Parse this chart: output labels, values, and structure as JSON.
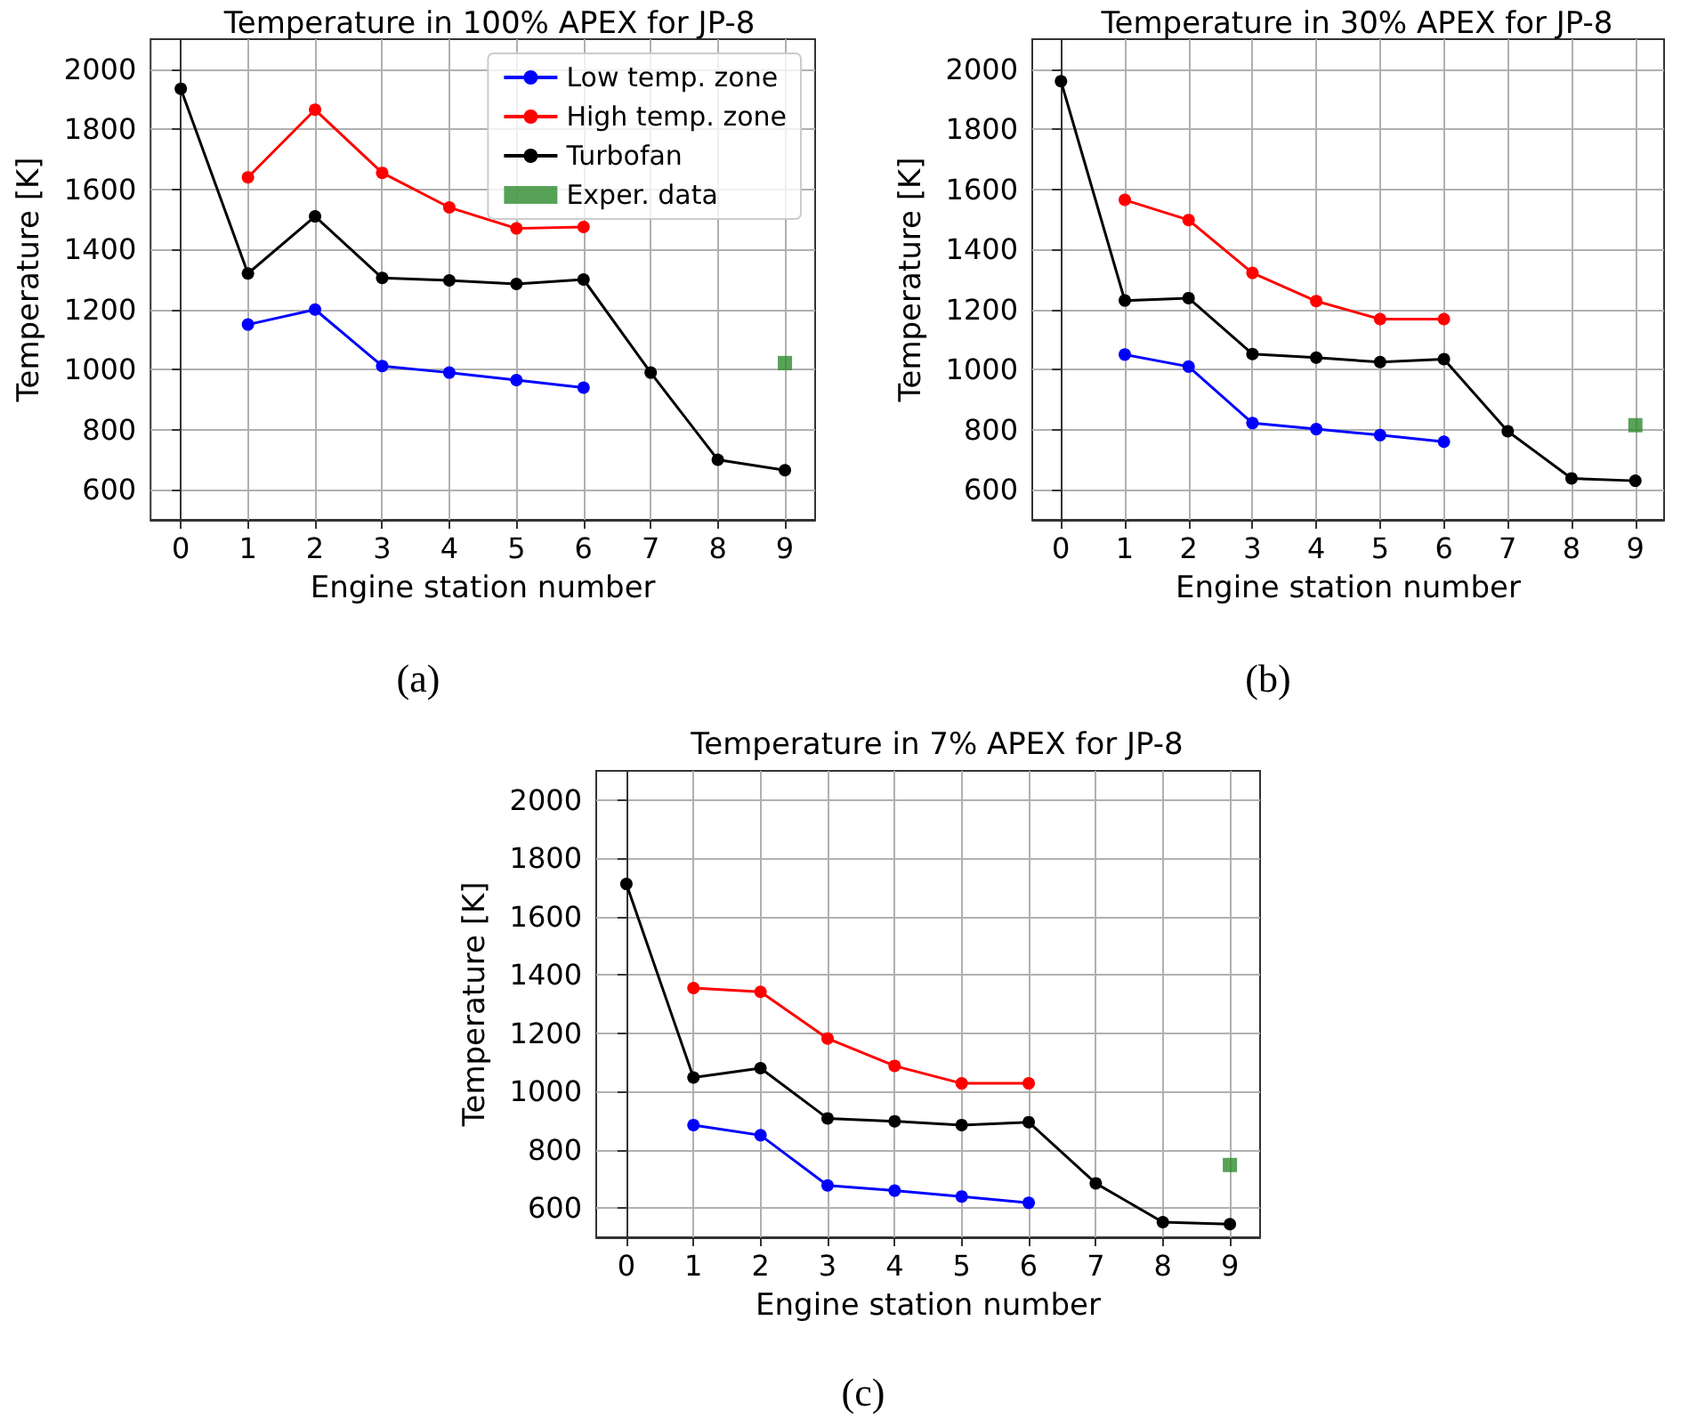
{
  "chart_data": [
    {
      "type": "line",
      "title": "Temperature in 100% APEX for JP-8",
      "xlabel": "Engine station number",
      "ylabel": "Temperature [K]",
      "annotations": [
        "(a)"
      ],
      "x": [
        0,
        1,
        2,
        3,
        4,
        5,
        6,
        7,
        8,
        9
      ],
      "xlim": [
        -0.45,
        9.45
      ],
      "xticks": [
        0,
        1,
        2,
        3,
        4,
        5,
        6,
        7,
        8,
        9
      ],
      "ylim": [
        500,
        2100
      ],
      "yticks": [
        600,
        800,
        1000,
        1200,
        1400,
        1600,
        1800,
        2000
      ],
      "grid": true,
      "legend": "top right",
      "marker": "circle",
      "series": [
        {
          "name": "Low temp. zone",
          "color": "#0000ff",
          "values": [
            null,
            1150,
            1200,
            1012,
            990,
            965,
            940,
            null,
            null,
            null
          ]
        },
        {
          "name": "High temp. zone",
          "color": "#ff0000",
          "values": [
            null,
            1640,
            1865,
            1655,
            1540,
            1470,
            1475,
            null,
            null,
            null
          ]
        },
        {
          "name": "Turbofan",
          "color": "#000000",
          "values": [
            1935,
            1320,
            1510,
            1305,
            1297,
            1285,
            1300,
            990,
            700,
            665
          ]
        },
        {
          "name": "Exper. data",
          "type": "scatter",
          "marker": "square",
          "color": "#2e8b2e",
          "values": [
            null,
            null,
            null,
            null,
            null,
            null,
            null,
            null,
            null,
            1022
          ]
        }
      ]
    },
    {
      "type": "line",
      "title": "Temperature in 30% APEX for JP-8",
      "xlabel": "Engine station number",
      "ylabel": "Temperature [K]",
      "annotations": [
        "(b)"
      ],
      "x": [
        0,
        1,
        2,
        3,
        4,
        5,
        6,
        7,
        8,
        9
      ],
      "xlim": [
        -0.45,
        9.45
      ],
      "xticks": [
        0,
        1,
        2,
        3,
        4,
        5,
        6,
        7,
        8,
        9
      ],
      "ylim": [
        500,
        2100
      ],
      "yticks": [
        600,
        800,
        1000,
        1200,
        1400,
        1600,
        1800,
        2000
      ],
      "grid": true,
      "marker": "circle",
      "series": [
        {
          "color": "#0000ff",
          "values": [
            null,
            1050,
            1010,
            822,
            802,
            782,
            760,
            null,
            null,
            null
          ]
        },
        {
          "color": "#ff0000",
          "values": [
            null,
            1565,
            1498,
            1322,
            1228,
            1168,
            1168,
            null,
            null,
            null
          ]
        },
        {
          "color": "#000000",
          "values": [
            1960,
            1230,
            1238,
            1052,
            1040,
            1025,
            1035,
            795,
            638,
            630
          ]
        },
        {
          "type": "scatter",
          "marker": "square",
          "color": "#2e8b2e",
          "values": [
            null,
            null,
            null,
            null,
            null,
            null,
            null,
            null,
            null,
            815
          ]
        }
      ]
    },
    {
      "type": "line",
      "title": "Temperature in 7% APEX for JP-8",
      "xlabel": "Engine station number",
      "ylabel": "Temperature [K]",
      "annotations": [
        "(c)"
      ],
      "x": [
        0,
        1,
        2,
        3,
        4,
        5,
        6,
        7,
        8,
        9
      ],
      "xlim": [
        -0.45,
        9.45
      ],
      "xticks": [
        0,
        1,
        2,
        3,
        4,
        5,
        6,
        7,
        8,
        9
      ],
      "ylim": [
        500,
        2100
      ],
      "yticks": [
        600,
        800,
        1000,
        1200,
        1400,
        1600,
        1800,
        2000
      ],
      "grid": true,
      "marker": "circle",
      "series": [
        {
          "color": "#0000ff",
          "values": [
            null,
            885,
            850,
            678,
            660,
            640,
            618,
            null,
            null,
            null
          ]
        },
        {
          "color": "#ff0000",
          "values": [
            null,
            1355,
            1342,
            1182,
            1088,
            1028,
            1028,
            null,
            null,
            null
          ]
        },
        {
          "color": "#000000",
          "values": [
            1712,
            1048,
            1080,
            908,
            898,
            885,
            895,
            685,
            552,
            545
          ]
        },
        {
          "type": "scatter",
          "marker": "square",
          "color": "#2e8b2e",
          "values": [
            null,
            null,
            null,
            null,
            null,
            null,
            null,
            null,
            null,
            748
          ]
        }
      ]
    }
  ]
}
